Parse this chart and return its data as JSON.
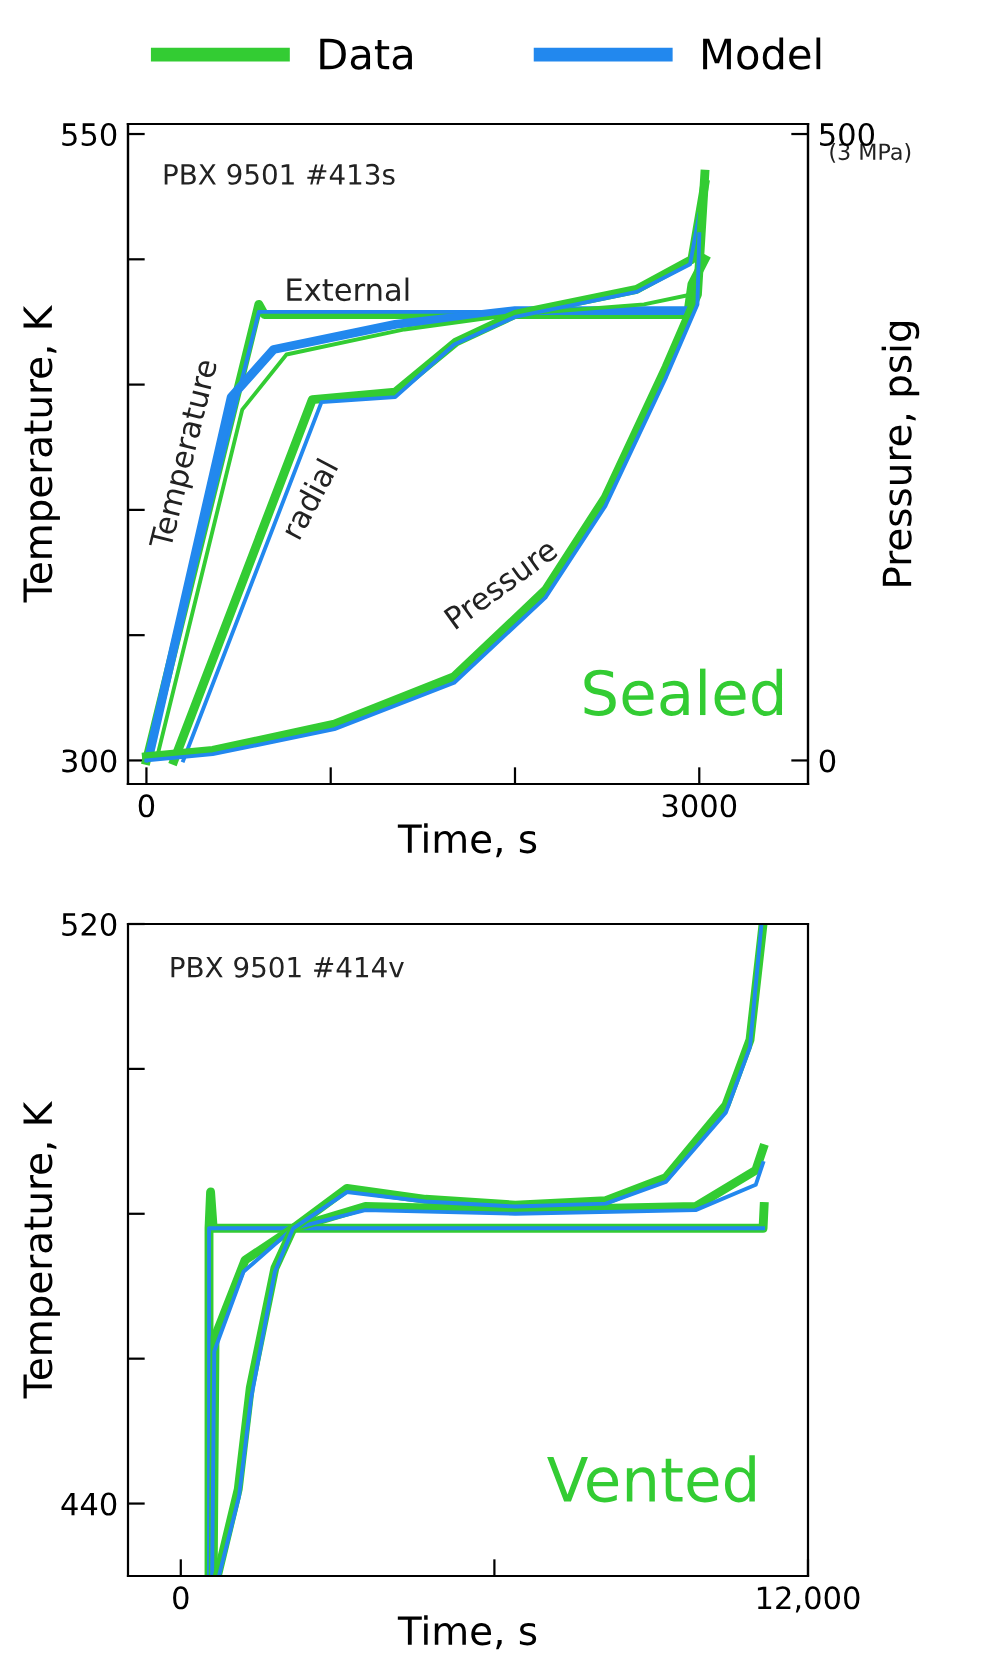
{
  "chart_data": [
    {
      "type": "line",
      "xlabel": "Time, s",
      "ylabel": "Temperature, K",
      "y2label": "Pressure, psig",
      "annotations": [
        "PBX 9501 #413s",
        "External",
        "Temperature",
        "radial",
        "Pressure",
        "Sealed",
        "(3 MPa)"
      ],
      "xlim": [
        -100,
        3590
      ],
      "xticks": [
        0,
        {
          "value": 1000,
          "label": null
        },
        {
          "value": 2000,
          "label": null
        },
        3000
      ],
      "ylim": [
        290.6,
        554
      ],
      "yticks": [
        300,
        {
          "value": 350,
          "label": null
        },
        {
          "value": 400,
          "label": null
        },
        {
          "value": 450,
          "label": null
        },
        {
          "value": 500,
          "label": null
        },
        550
      ],
      "y2lim": [
        -18.8,
        508
      ],
      "y2ticks": [
        0,
        500
      ],
      "legend": "top",
      "grid": false,
      "series": [
        {
          "name": "Data",
          "color": "#33cc33",
          "x": [
            0,
            610,
            640,
            2937,
            2960,
            3030
          ],
          "values": [
            300,
            482,
            478,
            478,
            490,
            500
          ]
        },
        {
          "name": "Model",
          "color": "#2288ee",
          "x": [
            0,
            610,
            2937
          ],
          "values": [
            300,
            479,
            479
          ]
        },
        {
          "color": "#2288ee",
          "x": [
            15,
            460,
            690,
            1350,
            2000,
            2937
          ],
          "values": [
            302,
            445,
            464,
            474,
            479.5,
            479.5
          ]
        },
        {
          "color": "#33cc33",
          "x": [
            60,
            520,
            760,
            1400,
            2000,
            2700,
            2960
          ],
          "values": [
            302,
            440,
            462,
            472,
            478,
            482,
            486
          ]
        },
        {
          "color": "#33cc33",
          "x": [
            150,
            900,
            1350,
            1680,
            2000,
            2660,
            2960,
            3030
          ],
          "values": [
            300,
            444,
            447,
            467,
            478,
            488,
            500,
            530
          ]
        },
        {
          "color": "#2288ee",
          "x": [
            200,
            950,
            1350,
            1670,
            2000,
            2660,
            2950,
            3000
          ],
          "values": [
            300,
            443,
            445,
            466,
            477,
            487,
            498,
            518
          ]
        },
        {
          "color": "#33cc33",
          "axis": "y2",
          "x": [
            0,
            360,
            1020,
            1670,
            2165,
            2490,
            2820,
            2990,
            3030
          ],
          "values": [
            3,
            8,
            29,
            67,
            136,
            210,
            314,
            372,
            468
          ]
        },
        {
          "color": "#2288ee",
          "axis": "y2",
          "x": [
            0,
            360,
            1020,
            1670,
            2165,
            2490,
            2820,
            2990,
            3000
          ],
          "values": [
            0,
            5,
            25,
            62,
            130,
            203,
            306,
            364,
            420
          ]
        }
      ]
    },
    {
      "type": "line",
      "xlabel": "Time, s",
      "ylabel": "Temperature, K",
      "annotations": [
        "PBX 9501 #414v",
        "Vented"
      ],
      "xlim": [
        -1010,
        12000
      ],
      "xticks": [
        0,
        {
          "value": 6000,
          "label": null
        },
        {
          "value": 12000,
          "label": "12,000"
        }
      ],
      "ylim": [
        430,
        520
      ],
      "yticks": [
        440,
        {
          "value": 460,
          "label": null
        },
        {
          "value": 480,
          "label": null
        },
        {
          "value": 500,
          "label": null
        },
        520
      ],
      "grid": false,
      "series": [
        {
          "color": "#33cc33",
          "x": [
            540,
            540,
            570,
            620,
            11140,
            11160
          ],
          "values": [
            430,
            478,
            483,
            478,
            478,
            481
          ]
        },
        {
          "color": "#2288ee",
          "x": [
            540,
            540,
            11140
          ],
          "values": [
            430,
            478,
            478
          ]
        },
        {
          "color": "#33cc33",
          "x": [
            620,
            655,
            1230,
            2150,
            3530,
            6400,
            9850,
            11000,
            11140
          ],
          "values": [
            430,
            463,
            473.6,
            478,
            481,
            480.5,
            481,
            486,
            489
          ]
        },
        {
          "color": "#2288ee",
          "x": [
            600,
            640,
            1200,
            2150,
            3530,
            6400,
            9850,
            11000,
            11140
          ],
          "values": [
            430,
            461,
            472,
            478,
            480.5,
            480,
            480.5,
            484,
            487
          ]
        },
        {
          "color": "#33cc33",
          "x": [
            700,
            1100,
            1330,
            1800,
            2150,
            3180,
            4680,
            6400,
            8130,
            9280,
            10430,
            10890,
            11140
          ],
          "values": [
            430,
            442,
            456,
            472.5,
            478,
            483.5,
            482,
            481.2,
            481.8,
            485,
            495,
            504,
            520
          ]
        },
        {
          "color": "#2288ee",
          "x": [
            730,
            1115,
            1345,
            1800,
            2150,
            3180,
            4680,
            6400,
            8130,
            9280,
            10430,
            10890,
            11110
          ],
          "values": [
            430,
            441,
            454.5,
            472,
            478,
            483,
            481.7,
            481,
            481.4,
            484.4,
            494,
            503,
            520
          ]
        }
      ]
    }
  ]
}
